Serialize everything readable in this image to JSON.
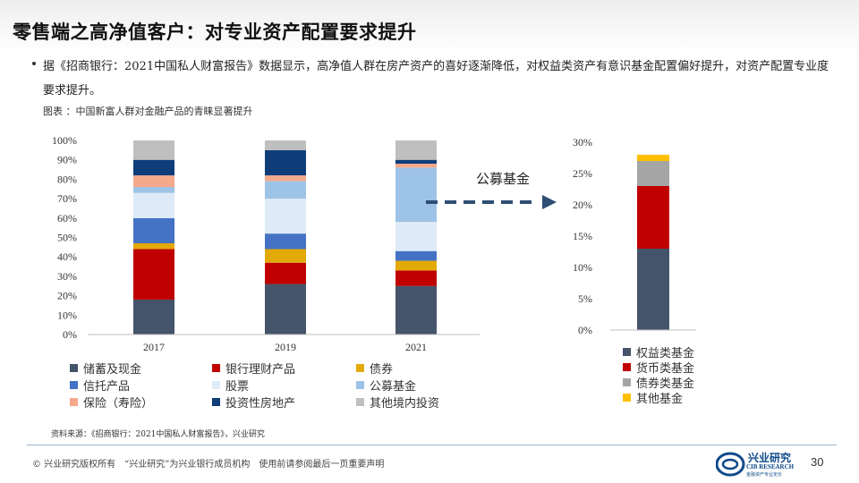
{
  "title": "零售端之高净值客户：对专业资产配置要求提升",
  "bullet": "据《招商银行：2021中国私人财富报告》数据显示，高净值人群在房产资产的喜好逐渐降低，对权益类资产有意识基金配置偏好提升，对资产配置专业度要求提升。",
  "figure_caption": "图表 ：中国新富人群对金融产品的青睐显著提升",
  "arrow_label": "公募基金",
  "source": "资料来源：《招商银行：2021中国私人财富报告》，兴业研究",
  "footer": {
    "copyright": "© 兴业研究版权所有　“兴业研究”为兴业银行成员机构　使用前请参阅最后一页重要声明",
    "logo_cn": "兴业研究",
    "logo_en": "CIB RESEARCH",
    "logo_sub": "金融资产专业定价",
    "page_number": "30"
  },
  "colors": {
    "储蓄及现金": "#44546a",
    "银行理财产品": "#c00000",
    "债券": "#e3a908",
    "信托产品": "#4472c4",
    "股票": "#deebf7",
    "公募基金": "#9dc3e6",
    "保险（寿险）": "#f4a98c",
    "投资性房地产": "#0e3d7a",
    "其他境内投资": "#bfbfbf",
    "权益类基金": "#44546a",
    "货币类基金": "#c00000",
    "债券类基金": "#a5a5a5",
    "其他基金": "#ffc000",
    "arrow": "#2f4e73"
  },
  "chart_data": [
    {
      "type": "bar",
      "stacked": true,
      "categories": [
        "2017",
        "2019",
        "2021"
      ],
      "ylim": [
        0,
        100
      ],
      "yticks": [
        "0%",
        "10%",
        "20%",
        "30%",
        "40%",
        "50%",
        "60%",
        "70%",
        "80%",
        "90%",
        "100%"
      ],
      "series": [
        {
          "name": "储蓄及现金",
          "values": [
            18,
            26,
            25
          ]
        },
        {
          "name": "银行理财产品",
          "values": [
            26,
            11,
            8
          ]
        },
        {
          "name": "债券",
          "values": [
            3,
            7,
            5
          ]
        },
        {
          "name": "信托产品",
          "values": [
            13,
            8,
            5
          ]
        },
        {
          "name": "股票",
          "values": [
            13,
            18,
            15
          ]
        },
        {
          "name": "公募基金",
          "values": [
            3,
            9,
            28
          ]
        },
        {
          "name": "保险（寿险）",
          "values": [
            6,
            3,
            2
          ]
        },
        {
          "name": "投资性房地产",
          "values": [
            8,
            13,
            2
          ]
        },
        {
          "name": "其他境内投资",
          "values": [
            10,
            5,
            10
          ]
        }
      ],
      "legend": [
        "储蓄及现金",
        "银行理财产品",
        "债券",
        "信托产品",
        "股票",
        "公募基金",
        "保险（寿险）",
        "投资性房地产",
        "其他境内投资"
      ]
    },
    {
      "type": "bar",
      "stacked": true,
      "categories": [
        ""
      ],
      "ylim": [
        0,
        30
      ],
      "yticks": [
        "0%",
        "5%",
        "10%",
        "15%",
        "20%",
        "25%",
        "30%"
      ],
      "series": [
        {
          "name": "权益类基金",
          "values": [
            13
          ]
        },
        {
          "name": "货币类基金",
          "values": [
            10
          ]
        },
        {
          "name": "债券类基金",
          "values": [
            4
          ]
        },
        {
          "name": "其他基金",
          "values": [
            1
          ]
        }
      ],
      "legend": [
        "权益类基金",
        "货币类基金",
        "债券类基金",
        "其他基金"
      ]
    }
  ]
}
